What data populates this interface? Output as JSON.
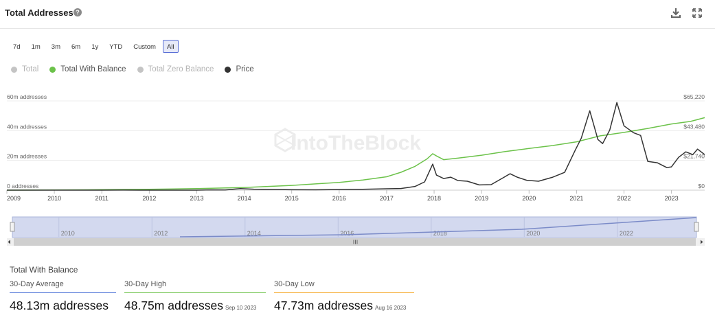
{
  "header": {
    "title": "Total Addresses",
    "help": "?"
  },
  "ranges": {
    "items": [
      "7d",
      "1m",
      "3m",
      "6m",
      "1y",
      "YTD",
      "Custom",
      "All"
    ],
    "active": "All"
  },
  "legend": [
    {
      "label": "Total",
      "color": "#c4c4c4",
      "active": false
    },
    {
      "label": "Total With Balance",
      "color": "#6cc24a",
      "active": true
    },
    {
      "label": "Total Zero Balance",
      "color": "#c4c4c4",
      "active": false
    },
    {
      "label": "Price",
      "color": "#333333",
      "active": true
    }
  ],
  "watermark": "IntoTheBlock",
  "chart_data": {
    "type": "line",
    "x_ticks": [
      "2009",
      "2010",
      "2011",
      "2012",
      "2013",
      "2014",
      "2015",
      "2016",
      "2017",
      "2018",
      "2019",
      "2020",
      "2021",
      "2022",
      "2023"
    ],
    "xlim": [
      2009.0,
      2023.7
    ],
    "y_left_ticks": [
      "0 addresses",
      "20m addresses",
      "40m addresses",
      "60m addresses"
    ],
    "y_left_values": [
      0,
      20,
      40,
      60
    ],
    "y_left_lim": [
      0,
      60
    ],
    "y_right_ticks": [
      "$0",
      "$21,740",
      "$43,480",
      "$65,220"
    ],
    "y_right_values": [
      0,
      21740,
      43480,
      65220
    ],
    "y_right_lim": [
      0,
      65220
    ],
    "grid": true,
    "series": [
      {
        "name": "Total With Balance",
        "axis": "left",
        "color": "#6cc24a",
        "x": [
          2009.0,
          2010.0,
          2011.0,
          2012.0,
          2013.0,
          2014.0,
          2014.5,
          2015.0,
          2015.5,
          2016.0,
          2016.5,
          2017.0,
          2017.3,
          2017.6,
          2017.85,
          2017.97,
          2018.05,
          2018.2,
          2018.5,
          2019.0,
          2019.5,
          2020.0,
          2020.5,
          2021.0,
          2021.5,
          2022.0,
          2022.5,
          2023.0,
          2023.4,
          2023.7
        ],
        "y": [
          0,
          0.1,
          0.3,
          0.6,
          1.0,
          1.8,
          2.5,
          3.2,
          4.2,
          5.2,
          6.8,
          9.0,
          12.0,
          16.0,
          21.0,
          24.5,
          23.0,
          20.5,
          21.5,
          23.5,
          26.0,
          28.0,
          30.0,
          32.5,
          36.5,
          38.8,
          41.5,
          44.5,
          46.2,
          48.75
        ]
      },
      {
        "name": "Price",
        "axis": "right",
        "color": "#333333",
        "x": [
          2009.0,
          2010.5,
          2011.0,
          2011.45,
          2011.8,
          2012.5,
          2013.0,
          2013.3,
          2013.6,
          2013.92,
          2014.2,
          2014.6,
          2015.0,
          2015.5,
          2016.0,
          2016.5,
          2017.0,
          2017.3,
          2017.6,
          2017.8,
          2017.97,
          2018.05,
          2018.2,
          2018.35,
          2018.5,
          2018.7,
          2018.95,
          2019.2,
          2019.45,
          2019.6,
          2019.75,
          2019.95,
          2020.2,
          2020.5,
          2020.75,
          2020.97,
          2021.1,
          2021.28,
          2021.45,
          2021.55,
          2021.7,
          2021.85,
          2022.0,
          2022.2,
          2022.35,
          2022.5,
          2022.7,
          2022.9,
          2023.0,
          2023.15,
          2023.3,
          2023.45,
          2023.55,
          2023.7
        ],
        "y": [
          0,
          0,
          1,
          30,
          3,
          10,
          15,
          200,
          120,
          1100,
          700,
          500,
          300,
          240,
          430,
          650,
          980,
          1200,
          2700,
          6000,
          19000,
          11000,
          8500,
          9500,
          7000,
          6500,
          3800,
          4000,
          9000,
          12000,
          9500,
          7200,
          6500,
          9500,
          13000,
          29000,
          38000,
          58000,
          37000,
          34000,
          44000,
          64000,
          47000,
          42000,
          40000,
          21000,
          20000,
          16500,
          17000,
          24000,
          28000,
          26000,
          30000,
          26000
        ]
      }
    ]
  },
  "navigator": {
    "ticks": [
      "2010",
      "2012",
      "2014",
      "2016",
      "2018",
      "2020",
      "2022"
    ]
  },
  "stats": {
    "title": "Total With Balance",
    "items": [
      {
        "label": "30-Day Average",
        "value": "48.13m addresses",
        "date": "",
        "color": "#4a6fd6"
      },
      {
        "label": "30-Day High",
        "value": "48.75m addresses",
        "date": "Sep 10 2023",
        "color": "#6cc24a"
      },
      {
        "label": "30-Day Low",
        "value": "47.73m addresses",
        "date": "Aug 16 2023",
        "color": "#f5a623"
      }
    ]
  }
}
